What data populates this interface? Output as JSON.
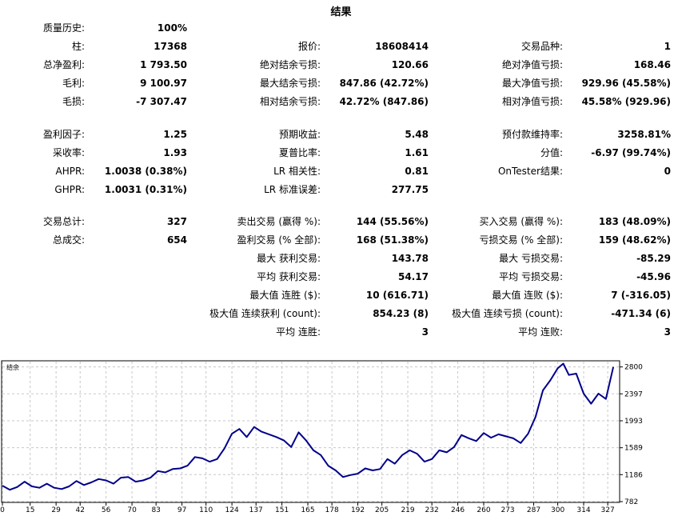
{
  "title": "结果",
  "stats": [
    [
      {
        "label": "质量历史:",
        "value": "100%"
      },
      null,
      null
    ],
    [
      {
        "label": "柱:",
        "value": "17368"
      },
      {
        "label": "报价:",
        "value": "18608414"
      },
      {
        "label": "交易品种:",
        "value": "1"
      }
    ],
    [
      {
        "label": "总净盈利:",
        "value": "1 793.50"
      },
      {
        "label": "绝对结余亏损:",
        "value": "120.66"
      },
      {
        "label": "绝对净值亏损:",
        "value": "168.46"
      }
    ],
    [
      {
        "label": "毛利:",
        "value": "9 100.97"
      },
      {
        "label": "最大结余亏损:",
        "value": "847.86 (42.72%)"
      },
      {
        "label": "最大净值亏损:",
        "value": "929.96 (45.58%)"
      }
    ],
    [
      {
        "label": "毛损:",
        "value": "-7 307.47"
      },
      {
        "label": "相对结余亏损:",
        "value": "42.72% (847.86)"
      },
      {
        "label": "相对净值亏损:",
        "value": "45.58% (929.96)"
      }
    ],
    [
      {
        "label": "盈利因子:",
        "value": "1.25"
      },
      {
        "label": "预期收益:",
        "value": "5.48"
      },
      {
        "label": "预付款维持率:",
        "value": "3258.81%"
      }
    ],
    [
      {
        "label": "采收率:",
        "value": "1.93"
      },
      {
        "label": "夏普比率:",
        "value": "1.61"
      },
      {
        "label": "分值:",
        "value": "-6.97 (99.74%)"
      }
    ],
    [
      {
        "label": "AHPR:",
        "value": "1.0038 (0.38%)"
      },
      {
        "label": "LR 相关性:",
        "value": "0.81"
      },
      {
        "label": "OnTester结果:",
        "value": "0"
      }
    ],
    [
      {
        "label": "GHPR:",
        "value": "1.0031 (0.31%)"
      },
      {
        "label": "LR 标准误差:",
        "value": "277.75"
      },
      null
    ],
    [
      {
        "label": "交易总计:",
        "value": "327"
      },
      {
        "label": "卖出交易 (赢得 %):",
        "value": "144 (55.56%)"
      },
      {
        "label": "买入交易 (赢得 %):",
        "value": "183 (48.09%)"
      }
    ],
    [
      {
        "label": "总成交:",
        "value": "654"
      },
      {
        "label": "盈利交易 (% 全部):",
        "value": "168 (51.38%)"
      },
      {
        "label": "亏损交易 (% 全部):",
        "value": "159 (48.62%)"
      }
    ],
    [
      null,
      {
        "label": "最大 获利交易:",
        "value": "143.78"
      },
      {
        "label": "最大 亏损交易:",
        "value": "-85.29"
      }
    ],
    [
      null,
      {
        "label": "平均 获利交易:",
        "value": "54.17"
      },
      {
        "label": "平均 亏损交易:",
        "value": "-45.96"
      }
    ],
    [
      null,
      {
        "label": "最大值 连胜 ($):",
        "value": "10 (616.71)"
      },
      {
        "label": "最大值 连败 ($):",
        "value": "7 (-316.05)"
      }
    ],
    [
      null,
      {
        "label": "极大值 连续获利 (count):",
        "value": "854.23 (8)"
      },
      {
        "label": "极大值 连续亏损 (count):",
        "value": "-471.34 (6)"
      }
    ],
    [
      null,
      {
        "label": "平均 连胜:",
        "value": "3"
      },
      {
        "label": "平均 连败:",
        "value": "3"
      }
    ]
  ],
  "chart_data": {
    "type": "line",
    "legend": "结余",
    "line_color": "#00008b",
    "x_ticks": [
      0,
      15,
      29,
      42,
      56,
      70,
      83,
      97,
      110,
      124,
      137,
      151,
      165,
      178,
      192,
      205,
      219,
      232,
      246,
      260,
      273,
      287,
      300,
      314,
      327
    ],
    "y_ticks": [
      782,
      1186,
      1589,
      1993,
      2397,
      2800
    ],
    "xlim": [
      0,
      333
    ],
    "ylim": [
      782,
      2880
    ],
    "series": [
      {
        "x": [
          0,
          4,
          8,
          12,
          16,
          20,
          24,
          28,
          32,
          36,
          40,
          44,
          48,
          52,
          56,
          60,
          64,
          68,
          72,
          76,
          80,
          84,
          88,
          92,
          96,
          100,
          104,
          108,
          112,
          116,
          120,
          124,
          128,
          132,
          136,
          140,
          144,
          148,
          152,
          156,
          160,
          164,
          168,
          172,
          176,
          180,
          184,
          188,
          192,
          196,
          200,
          204,
          208,
          212,
          216,
          220,
          224,
          228,
          232,
          236,
          240,
          244,
          248,
          252,
          256,
          260,
          264,
          268,
          272,
          276,
          280,
          284,
          288,
          292,
          296,
          300,
          303,
          306,
          310,
          314,
          318,
          322,
          326,
          330
        ],
        "y": [
          1020,
          960,
          1000,
          1080,
          1010,
          990,
          1050,
          990,
          970,
          1010,
          1090,
          1030,
          1070,
          1120,
          1100,
          1050,
          1140,
          1150,
          1080,
          1100,
          1140,
          1240,
          1220,
          1270,
          1280,
          1320,
          1450,
          1430,
          1380,
          1420,
          1580,
          1800,
          1870,
          1750,
          1900,
          1830,
          1790,
          1750,
          1700,
          1600,
          1820,
          1700,
          1550,
          1480,
          1320,
          1250,
          1150,
          1180,
          1200,
          1280,
          1250,
          1270,
          1420,
          1350,
          1480,
          1550,
          1500,
          1380,
          1420,
          1550,
          1520,
          1600,
          1780,
          1730,
          1690,
          1810,
          1740,
          1790,
          1760,
          1730,
          1660,
          1800,
          2050,
          2450,
          2600,
          2780,
          2850,
          2680,
          2700,
          2400,
          2250,
          2400,
          2320,
          2800
        ]
      }
    ]
  }
}
